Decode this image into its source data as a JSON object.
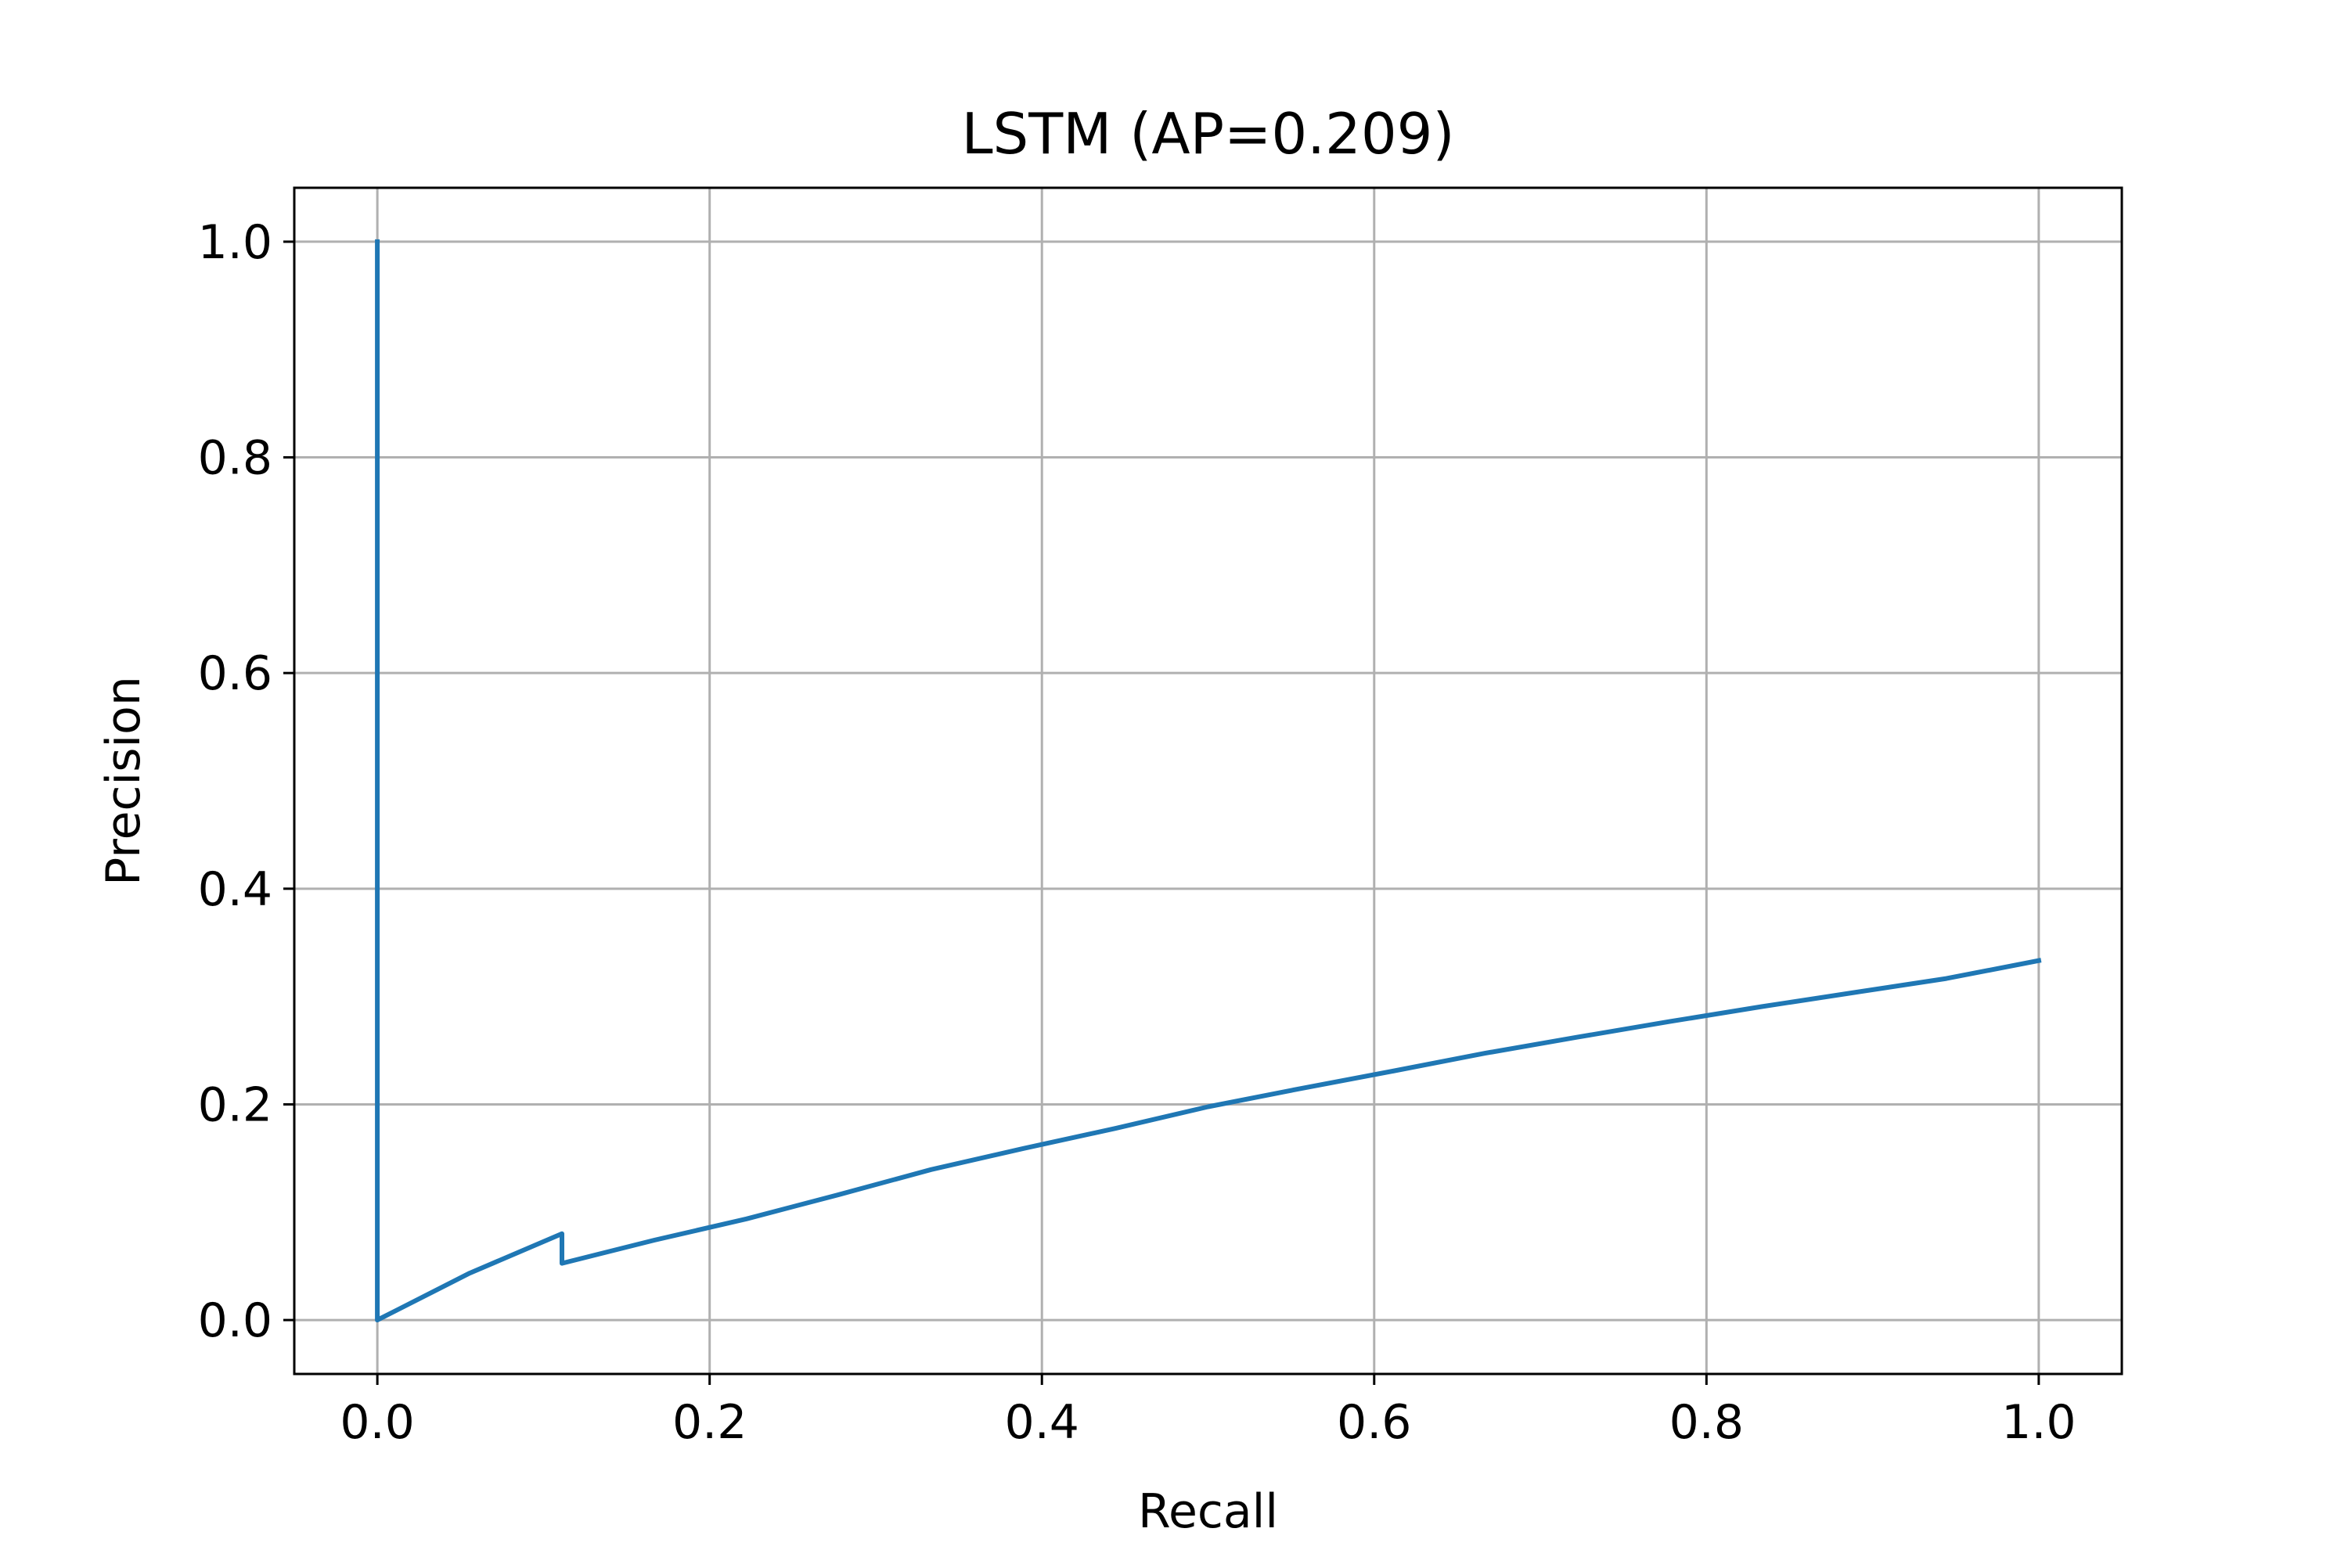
{
  "chart_data": {
    "type": "line",
    "title": "LSTM (AP=0.209)",
    "xlabel": "Recall",
    "ylabel": "Precision",
    "xlim": [
      -0.05,
      1.05
    ],
    "ylim": [
      -0.05,
      1.05
    ],
    "xticks": [
      0.0,
      0.2,
      0.4,
      0.6,
      0.8,
      1.0
    ],
    "yticks": [
      0.0,
      0.2,
      0.4,
      0.6,
      0.8,
      1.0
    ],
    "xtick_labels": [
      "0.0",
      "0.2",
      "0.4",
      "0.6",
      "0.8",
      "1.0"
    ],
    "ytick_labels": [
      "0.0",
      "0.2",
      "0.4",
      "0.6",
      "0.8",
      "1.0"
    ],
    "grid": true,
    "legend": "none",
    "colors": {
      "line": "#1f77b4",
      "grid": "#b0b0b0",
      "axes": "#000000"
    },
    "series": [
      {
        "x": [
          0.0,
          0.0,
          0.0556,
          0.1111,
          0.1111,
          0.1667,
          0.2222,
          0.2778,
          0.3333,
          0.3889,
          0.4444,
          0.5,
          0.5556,
          0.6111,
          0.6667,
          0.7222,
          0.7778,
          0.8333,
          0.8889,
          0.9444,
          1.0
        ],
        "y": [
          1.0,
          0.0,
          0.0435,
          0.08,
          0.0526,
          0.0741,
          0.0938,
          0.1163,
          0.1395,
          0.1591,
          0.1778,
          0.1978,
          0.2146,
          0.2308,
          0.2474,
          0.2623,
          0.2768,
          0.2907,
          0.3037,
          0.3167,
          0.3333
        ]
      }
    ]
  }
}
